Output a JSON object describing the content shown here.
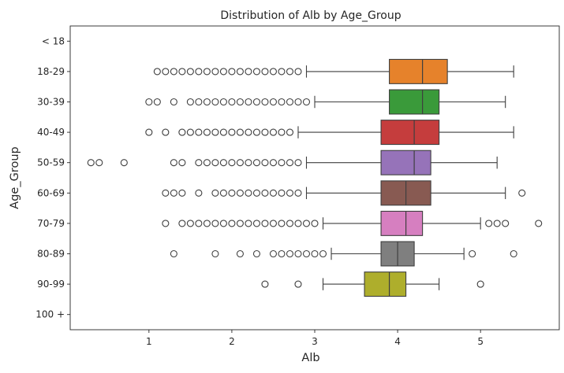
{
  "chart_data": {
    "type": "boxplot",
    "orientation": "horizontal",
    "title": "Distribution of Alb by Age_Group",
    "xlabel": "Alb",
    "ylabel": "Age_Group",
    "xlim": [
      0.05,
      5.95
    ],
    "xticks": [
      1,
      2,
      3,
      4,
      5
    ],
    "grid": false,
    "legend": "none",
    "categories": [
      "< 18",
      "18-29",
      "30-39",
      "40-49",
      "50-59",
      "60-69",
      "70-79",
      "80-89",
      "90-99",
      "100 +"
    ],
    "colors": [
      "#1f77b4",
      "#e6822b",
      "#3a9a3a",
      "#c53d3d",
      "#9673b9",
      "#885a52",
      "#d67fc0",
      "#7f7f7f",
      "#aeae2c",
      "#17becf"
    ],
    "boxes": [
      null,
      {
        "q1": 3.9,
        "median": 4.3,
        "q3": 4.6,
        "whisker_low": 2.9,
        "whisker_high": 5.4,
        "outliers": [
          1.1,
          1.2,
          1.3,
          1.4,
          1.5,
          1.6,
          1.7,
          1.8,
          1.9,
          2.0,
          2.1,
          2.2,
          2.3,
          2.4,
          2.5,
          2.6,
          2.7,
          2.8
        ]
      },
      {
        "q1": 3.9,
        "median": 4.3,
        "q3": 4.5,
        "whisker_low": 3.0,
        "whisker_high": 5.3,
        "outliers": [
          1.0,
          1.1,
          1.3,
          1.5,
          1.6,
          1.7,
          1.8,
          1.9,
          2.0,
          2.1,
          2.2,
          2.3,
          2.4,
          2.5,
          2.6,
          2.7,
          2.8,
          2.9
        ]
      },
      {
        "q1": 3.8,
        "median": 4.2,
        "q3": 4.5,
        "whisker_low": 2.8,
        "whisker_high": 5.4,
        "outliers": [
          1.0,
          1.2,
          1.4,
          1.5,
          1.6,
          1.7,
          1.8,
          1.9,
          2.0,
          2.1,
          2.2,
          2.3,
          2.4,
          2.5,
          2.6,
          2.7
        ]
      },
      {
        "q1": 3.8,
        "median": 4.2,
        "q3": 4.4,
        "whisker_low": 2.9,
        "whisker_high": 5.2,
        "outliers": [
          0.3,
          0.4,
          0.7,
          1.3,
          1.4,
          1.6,
          1.7,
          1.8,
          1.9,
          2.0,
          2.1,
          2.2,
          2.3,
          2.4,
          2.5,
          2.6,
          2.7,
          2.8
        ]
      },
      {
        "q1": 3.8,
        "median": 4.1,
        "q3": 4.4,
        "whisker_low": 2.9,
        "whisker_high": 5.3,
        "outliers": [
          1.2,
          1.3,
          1.4,
          1.6,
          1.8,
          1.9,
          2.0,
          2.1,
          2.2,
          2.3,
          2.4,
          2.5,
          2.6,
          2.7,
          2.8,
          5.5
        ]
      },
      {
        "q1": 3.8,
        "median": 4.1,
        "q3": 4.3,
        "whisker_low": 3.1,
        "whisker_high": 5.0,
        "outliers": [
          1.2,
          1.4,
          1.5,
          1.6,
          1.7,
          1.8,
          1.9,
          2.0,
          2.1,
          2.2,
          2.3,
          2.4,
          2.5,
          2.6,
          2.7,
          2.8,
          2.9,
          3.0,
          5.1,
          5.2,
          5.3,
          5.7
        ]
      },
      {
        "q1": 3.8,
        "median": 4.0,
        "q3": 4.2,
        "whisker_low": 3.2,
        "whisker_high": 4.8,
        "outliers": [
          1.3,
          1.8,
          2.1,
          2.3,
          2.5,
          2.6,
          2.7,
          2.8,
          2.9,
          3.0,
          3.1,
          4.9,
          5.4
        ]
      },
      {
        "q1": 3.6,
        "median": 3.9,
        "q3": 4.1,
        "whisker_low": 3.1,
        "whisker_high": 4.5,
        "outliers": [
          2.4,
          2.8,
          5.0
        ]
      },
      null
    ]
  }
}
